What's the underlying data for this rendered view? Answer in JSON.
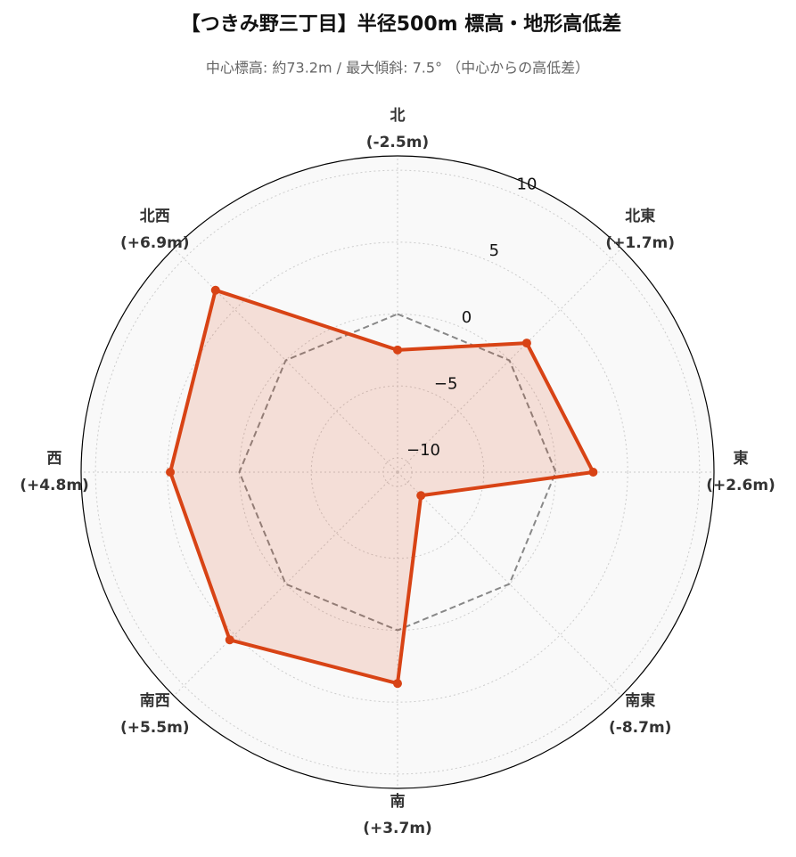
{
  "chart_data": {
    "type": "radar",
    "title": "【つきみ野三丁目】半径500m 標高・地形高低差",
    "subtitle": "中心標高: 約73.2m / 最大傾斜: 7.5° （中心からの高低差）",
    "categories": [
      "北",
      "北東",
      "東",
      "南東",
      "南",
      "南西",
      "西",
      "北西"
    ],
    "series": [
      {
        "color": "#d84315",
        "values": [
          -2.5,
          1.7,
          2.6,
          -8.7,
          3.7,
          5.5,
          4.8,
          6.9
        ],
        "value_labels": [
          "(-2.5m)",
          "(+1.7m)",
          "(+2.6m)",
          "(-8.7m)",
          "(+3.7m)",
          "(+5.5m)",
          "(+4.8m)",
          "(+6.9m)"
        ]
      }
    ],
    "baseline": 0,
    "ylim": [
      -11,
      11
    ],
    "yticks": [
      {
        "value": -10,
        "label": "−10"
      },
      {
        "value": -5,
        "label": "−5"
      },
      0,
      5,
      10
    ],
    "grid": true
  }
}
